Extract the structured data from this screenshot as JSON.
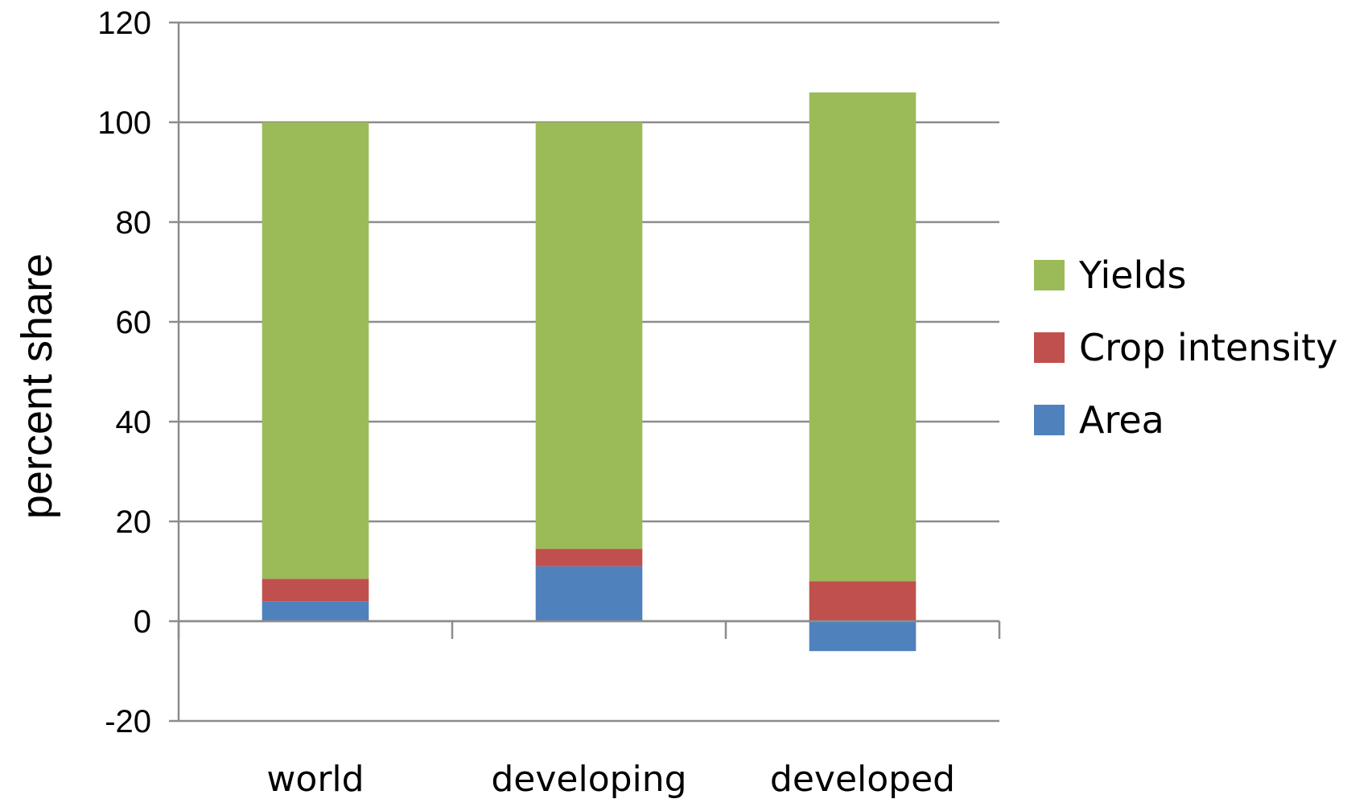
{
  "chart_data": {
    "type": "bar",
    "stacked": true,
    "title": "",
    "xlabel": "",
    "ylabel": "percent share",
    "ylim": [
      -20,
      120
    ],
    "yticks": [
      -20,
      0,
      20,
      40,
      60,
      80,
      100,
      120
    ],
    "grid": true,
    "legend_position": "right",
    "categories": [
      "world",
      "developing",
      "developed"
    ],
    "series": [
      {
        "name": "Area",
        "color": "#4f81bd",
        "values": [
          4,
          11,
          -6
        ]
      },
      {
        "name": "Crop intensity",
        "color": "#c0504d",
        "values": [
          4.5,
          3.5,
          8
        ]
      },
      {
        "name": "Yields",
        "color": "#9bbb59",
        "values": [
          91.5,
          85.5,
          98
        ]
      }
    ],
    "legend_order": [
      "Yields",
      "Crop intensity",
      "Area"
    ]
  }
}
